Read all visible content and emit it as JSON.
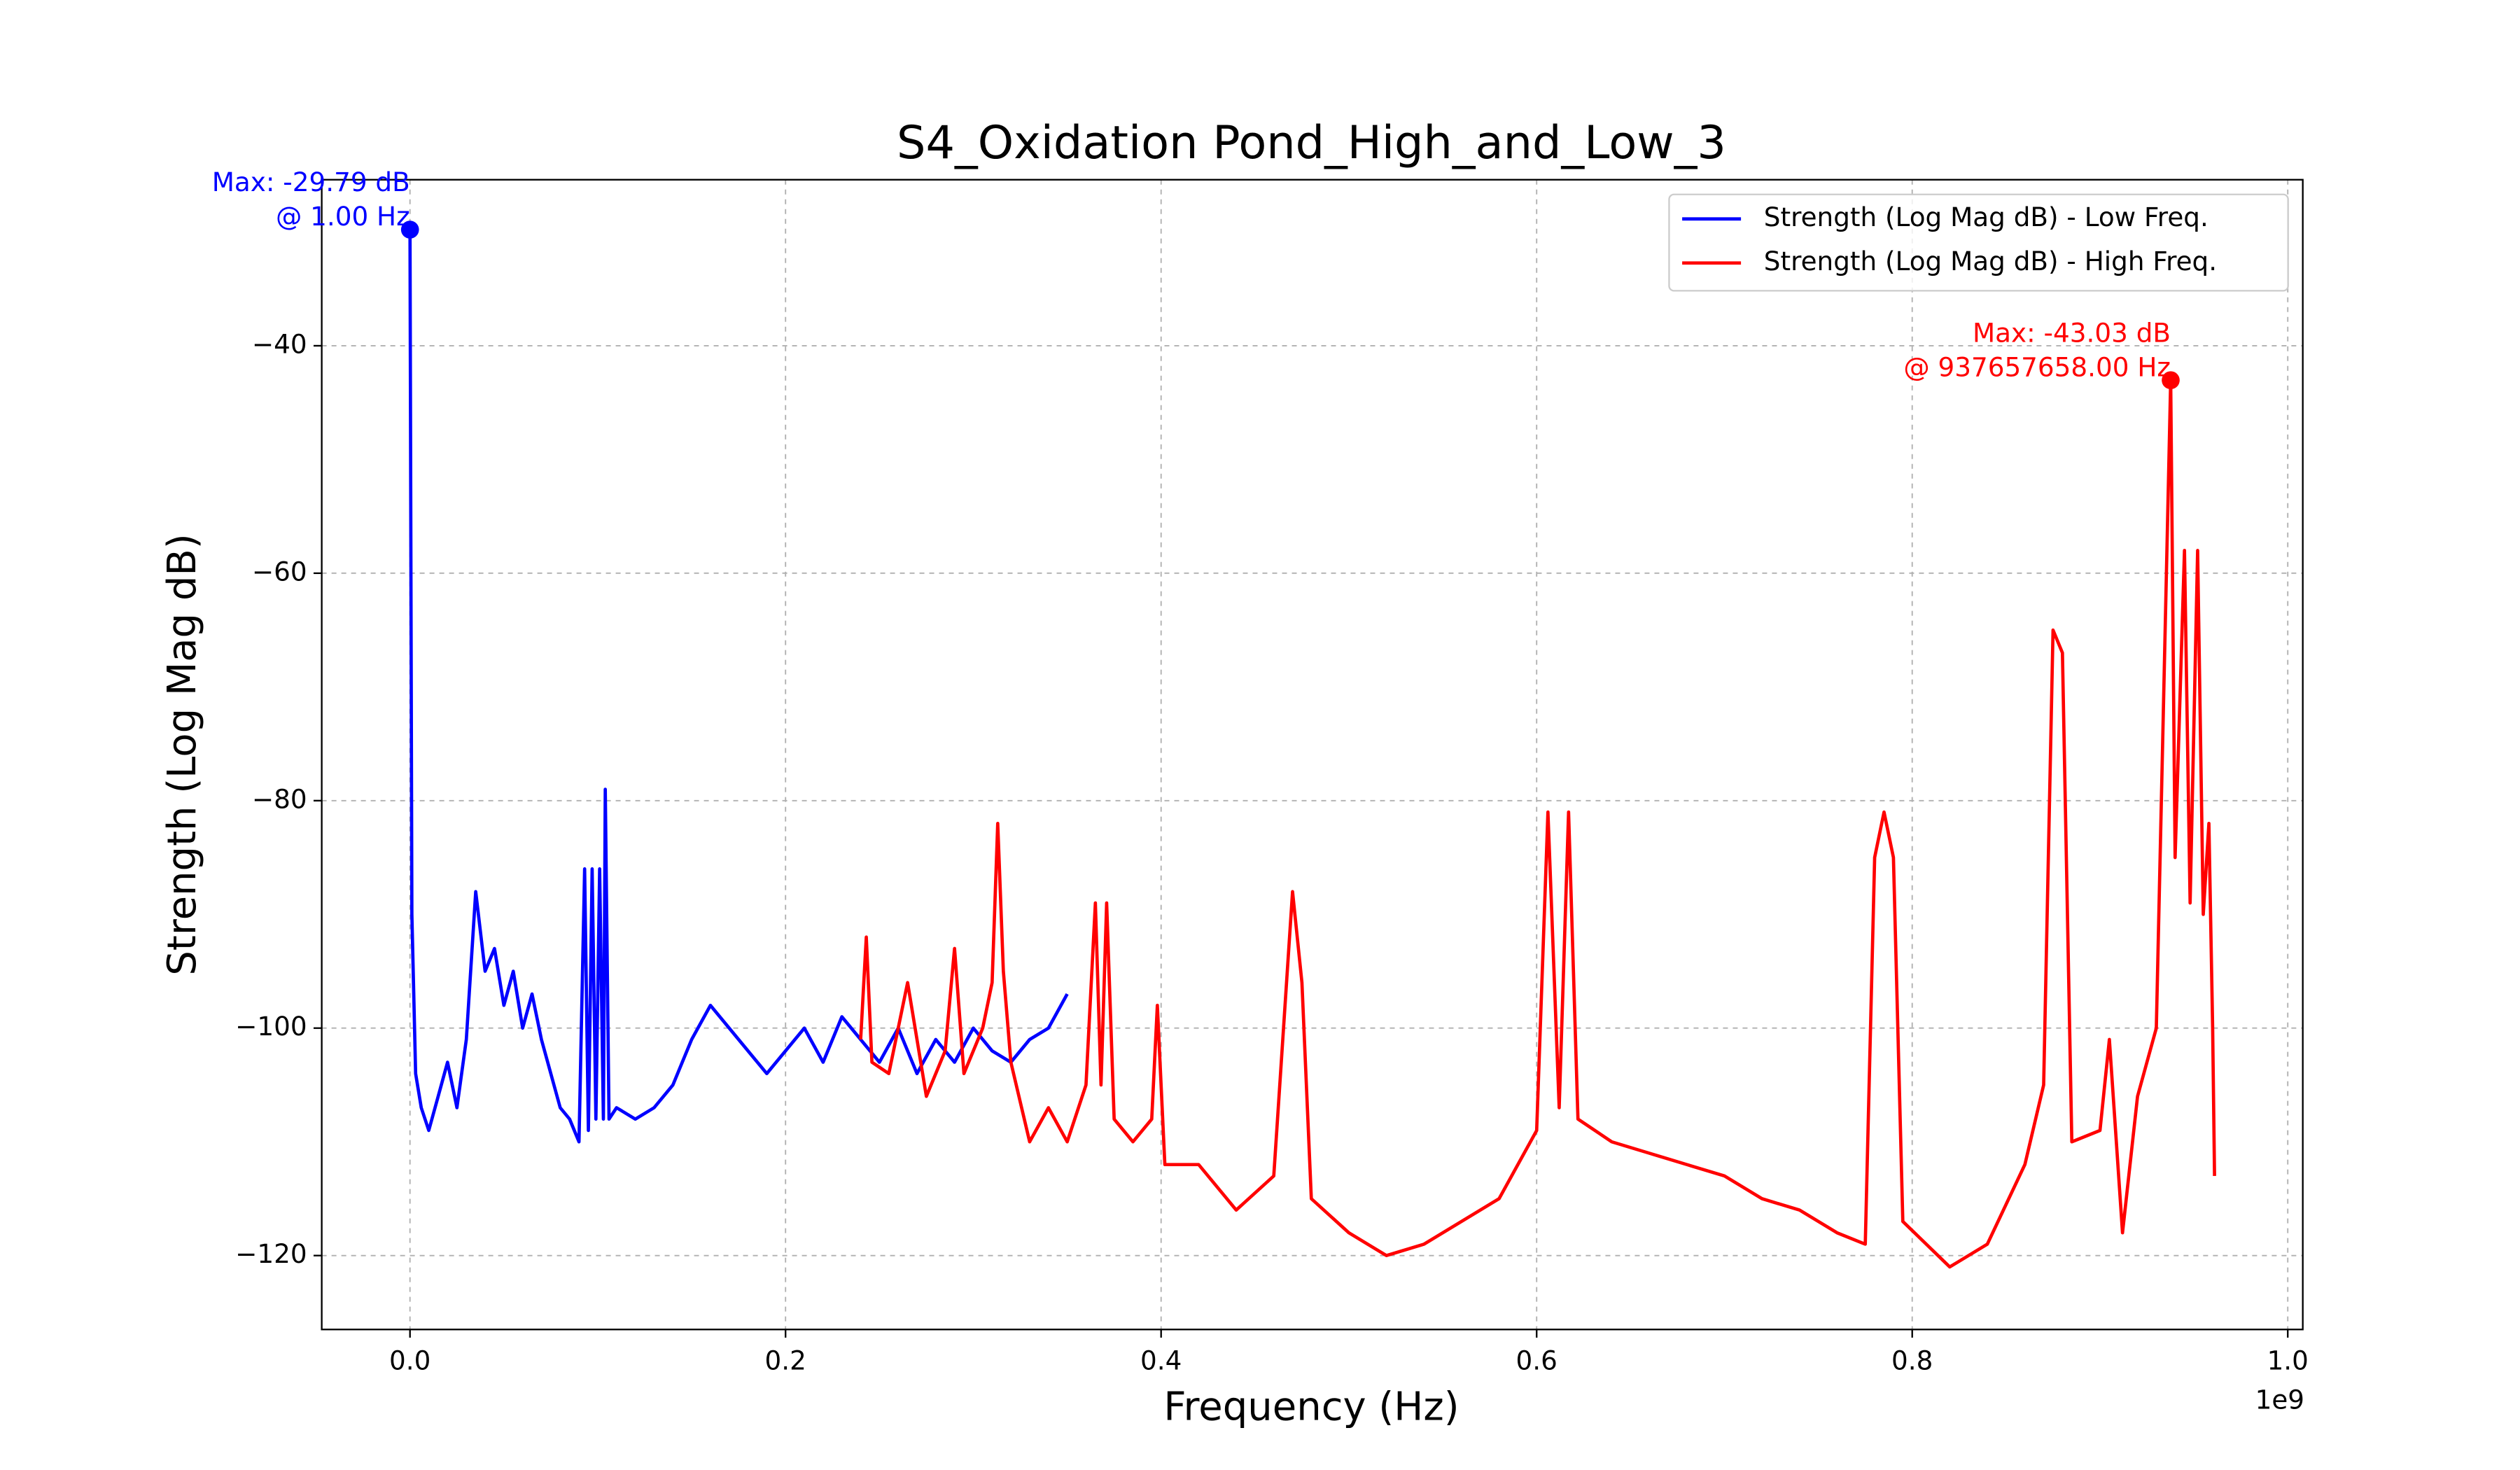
{
  "chart_data": {
    "type": "line",
    "title": "S4_Oxidation Pond_High_and_Low_3",
    "x_label": "Frequency (Hz)",
    "y_label": "Strength (Log Mag dB)",
    "x_offset_label": "1e9",
    "xlim": [
      -47000000,
      1008000000
    ],
    "ylim": [
      -126.5,
      -25.4
    ],
    "xticks": [
      {
        "value": 0,
        "label": "0.0"
      },
      {
        "value": 200000000,
        "label": "0.2"
      },
      {
        "value": 400000000,
        "label": "0.4"
      },
      {
        "value": 600000000,
        "label": "0.6"
      },
      {
        "value": 800000000,
        "label": "0.8"
      },
      {
        "value": 1000000000,
        "label": "1.0"
      }
    ],
    "yticks": [
      {
        "value": -40,
        "label": "−40"
      },
      {
        "value": -60,
        "label": "−60"
      },
      {
        "value": -80,
        "label": "−80"
      },
      {
        "value": -100,
        "label": "−100"
      },
      {
        "value": -120,
        "label": "−120"
      }
    ],
    "grid": true,
    "legend": "upper right",
    "series": [
      {
        "name": "Strength (Log Mag dB) - Low Freq.",
        "color": "#0000ff",
        "x": [
          1,
          1000000,
          3000000,
          6000000,
          10000000,
          15000000,
          20000000,
          25000000,
          30000000,
          35000000,
          40000000,
          45000000,
          50000000,
          55000000,
          60000000,
          65000000,
          70000000,
          75000000,
          80000000,
          85000000,
          90000000,
          93000000,
          95000000,
          97000000,
          99000000,
          101000000,
          103000000,
          104000000,
          106000000,
          110000000,
          120000000,
          130000000,
          140000000,
          150000000,
          160000000,
          170000000,
          180000000,
          190000000,
          200000000,
          210000000,
          220000000,
          230000000,
          240000000,
          250000000,
          260000000,
          270000000,
          280000000,
          290000000,
          300000000,
          310000000,
          320000000,
          330000000,
          340000000,
          350000000
        ],
        "values": [
          -29.79,
          -90,
          -104,
          -107,
          -109,
          -106,
          -103,
          -107,
          -101,
          -88,
          -95,
          -93,
          -98,
          -95,
          -100,
          -97,
          -101,
          -104,
          -107,
          -108,
          -110,
          -86,
          -109,
          -86,
          -108,
          -86,
          -108,
          -79,
          -108,
          -107,
          -108,
          -107,
          -105,
          -101,
          -98,
          -100,
          -102,
          -104,
          -102,
          -100,
          -103,
          -99,
          -101,
          -103,
          -100,
          -104,
          -101,
          -103,
          -100,
          -102,
          -103,
          -101,
          -100,
          -97
        ]
      },
      {
        "name": "Strength (Log Mag dB) - High Freq.",
        "color": "#ff0000",
        "x": [
          240000000,
          243000000,
          246000000,
          255000000,
          265000000,
          275000000,
          285000000,
          290000000,
          295000000,
          305000000,
          310000000,
          313000000,
          316000000,
          320000000,
          330000000,
          340000000,
          350000000,
          360000000,
          365000000,
          368000000,
          371000000,
          375000000,
          385000000,
          395000000,
          398000000,
          402000000,
          420000000,
          440000000,
          460000000,
          470000000,
          475000000,
          480000000,
          500000000,
          520000000,
          540000000,
          560000000,
          580000000,
          600000000,
          606000000,
          612000000,
          617000000,
          622000000,
          640000000,
          660000000,
          680000000,
          700000000,
          720000000,
          740000000,
          760000000,
          775000000,
          780000000,
          785000000,
          790000000,
          795000000,
          820000000,
          840000000,
          860000000,
          870000000,
          875000000,
          880000000,
          885000000,
          900000000,
          905000000,
          912000000,
          920000000,
          930000000,
          937657658,
          940000000,
          945000000,
          948000000,
          952000000,
          955000000,
          958000000,
          960000000,
          961000000
        ],
        "values": [
          -101,
          -92,
          -103,
          -104,
          -96,
          -106,
          -102,
          -93,
          -104,
          -100,
          -96,
          -82,
          -95,
          -103,
          -110,
          -107,
          -110,
          -105,
          -89,
          -105,
          -89,
          -108,
          -110,
          -108,
          -98,
          -112,
          -112,
          -116,
          -113,
          -88,
          -96,
          -115,
          -118,
          -120,
          -119,
          -117,
          -115,
          -109,
          -81,
          -107,
          -81,
          -108,
          -110,
          -111,
          -112,
          -113,
          -115,
          -116,
          -118,
          -119,
          -85,
          -81,
          -85,
          -117,
          -121,
          -119,
          -112,
          -105,
          -65,
          -67,
          -110,
          -109,
          -101,
          -118,
          -106,
          -100,
          -43.03,
          -85,
          -58,
          -89,
          -58,
          -90,
          -82,
          -100,
          -113
        ]
      }
    ],
    "annotations": [
      {
        "text": [
          "Max: -29.79 dB",
          "@ 1.00 Hz"
        ],
        "x": 1,
        "y": -29.79,
        "color": "#0000ff"
      },
      {
        "text": [
          "Max: -43.03 dB",
          "@ 937657658.00 Hz"
        ],
        "x": 937657658,
        "y": -43.03,
        "color": "#ff0000"
      }
    ]
  }
}
